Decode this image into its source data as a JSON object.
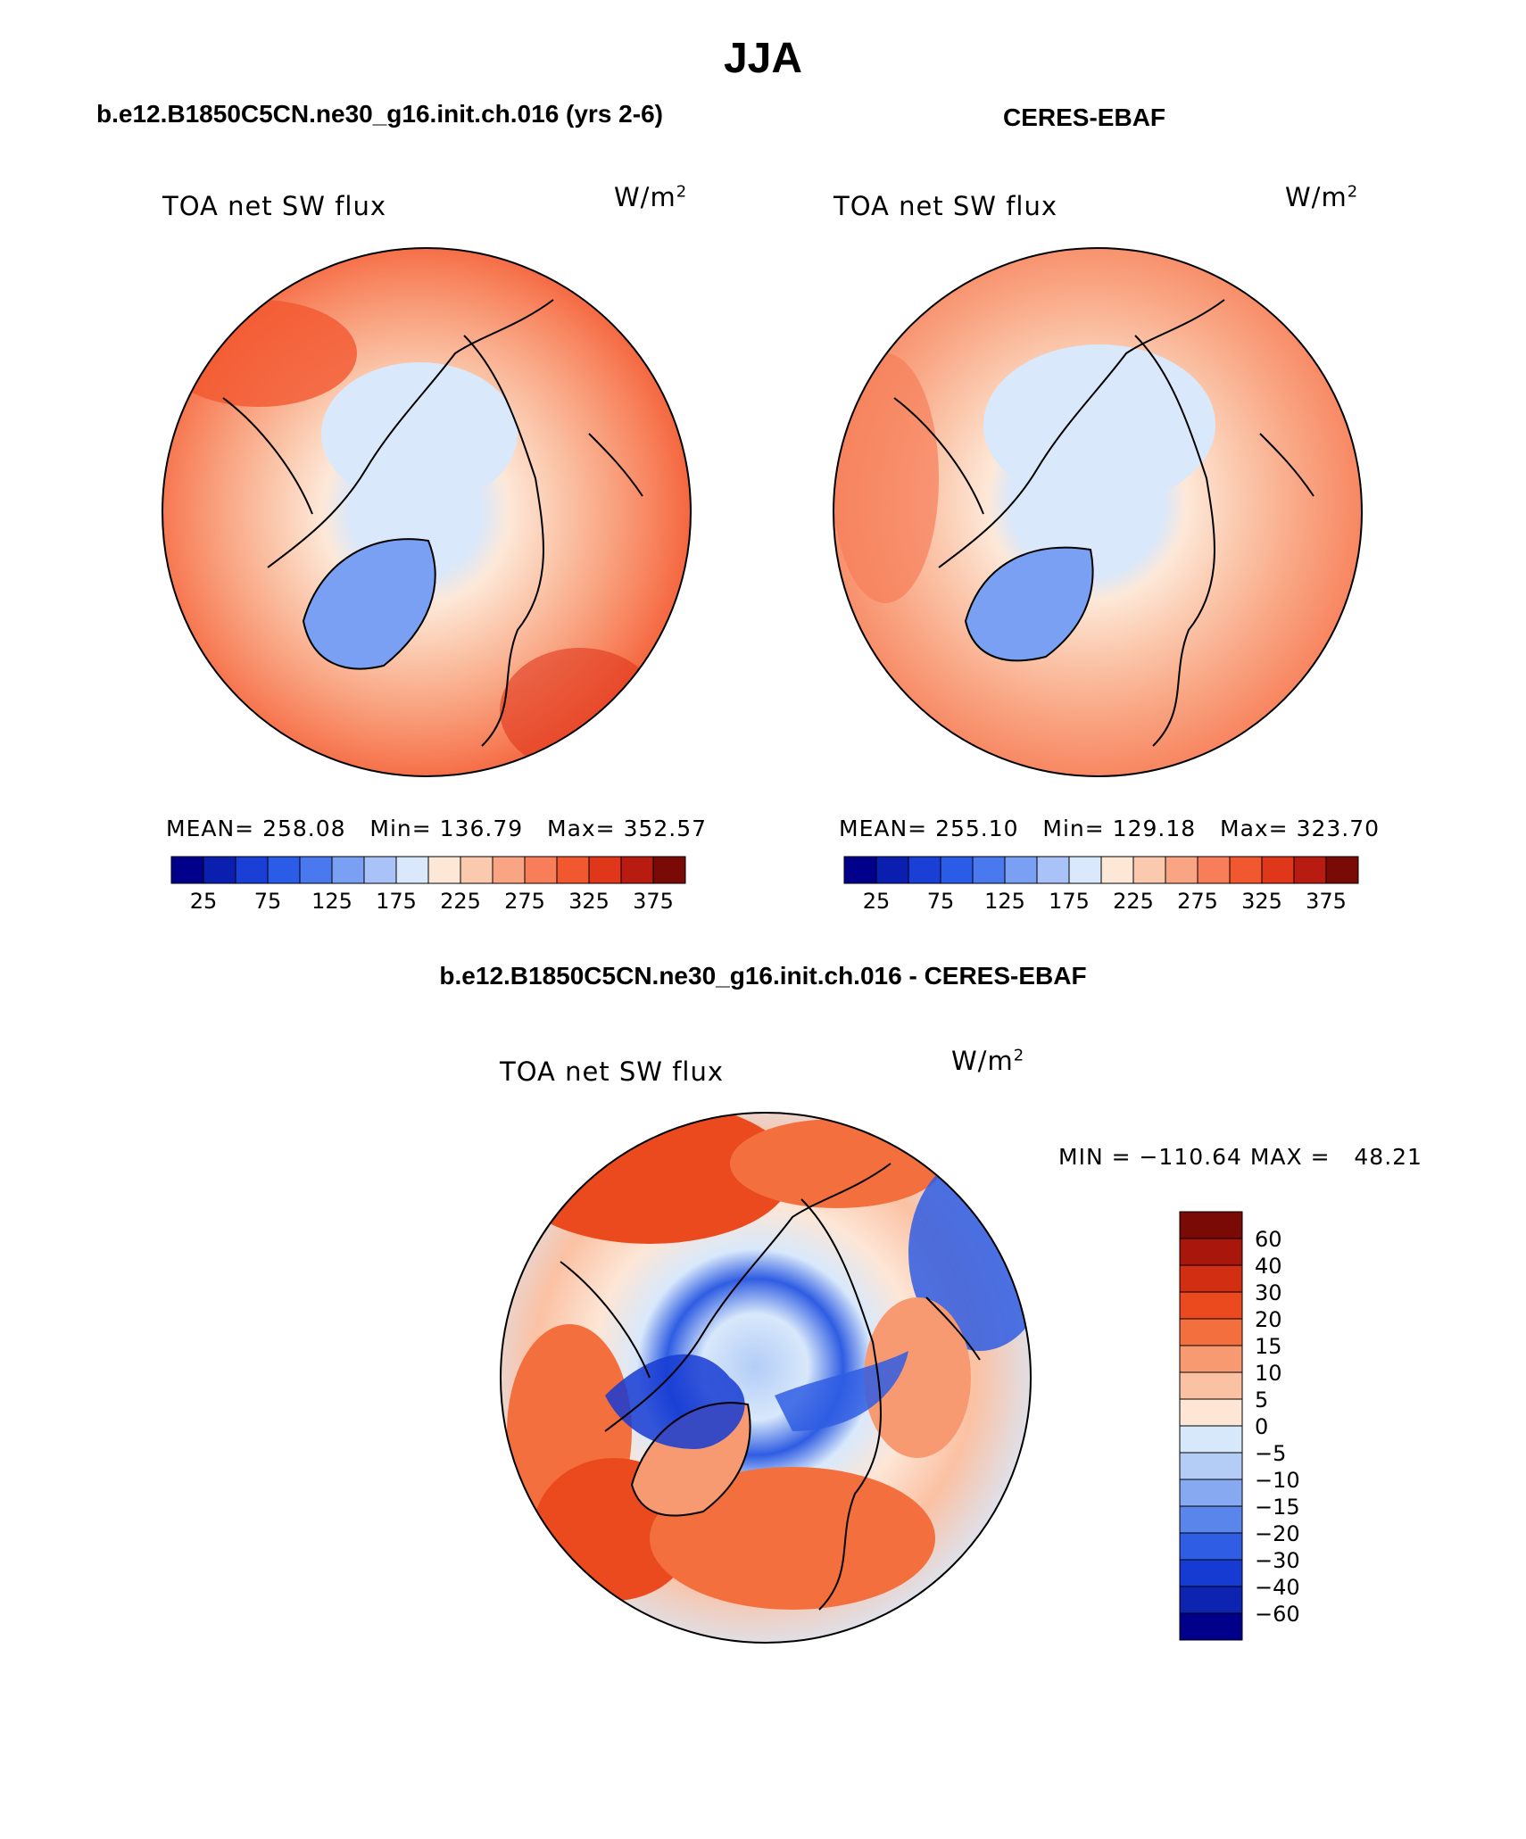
{
  "season": "JJA",
  "panels": {
    "model": {
      "case_title": "b.e12.B1850C5CN.ne30_g16.init.ch.016 (yrs 2-6)",
      "variable": "TOA net SW flux",
      "units_base": "W/m",
      "units_exp": "2",
      "mean_label": "MEAN=",
      "mean": "258.08",
      "min_label": "Min=",
      "min": "136.79",
      "max_label": "Max=",
      "max": "352.57"
    },
    "obs": {
      "case_title": "CERES-EBAF",
      "variable": "TOA net SW flux",
      "units_base": "W/m",
      "units_exp": "2",
      "mean_label": "MEAN=",
      "mean": "255.10",
      "min_label": "Min=",
      "min": "129.18",
      "max_label": "Max=",
      "max": "323.70"
    },
    "diff": {
      "case_title": "b.e12.B1850C5CN.ne30_g16.init.ch.016 - CERES-EBAF",
      "variable": "TOA net SW flux",
      "units_base": "W/m",
      "units_exp": "2",
      "minmax_text": "MIN = −110.64 MAX =   48.21"
    }
  },
  "colorbars": {
    "abs": {
      "colors": [
        "#00008b",
        "#0a1fb0",
        "#1a3fd6",
        "#2a5ce8",
        "#4a78ee",
        "#7aa0f4",
        "#a9c3f8",
        "#d9e8fb",
        "#fde8d8",
        "#fbc9ae",
        "#f9a583",
        "#f77e58",
        "#f25830",
        "#e0361a",
        "#b81c10",
        "#7a0a06"
      ],
      "labels": [
        "25",
        "75",
        "125",
        "175",
        "225",
        "275",
        "325",
        "375"
      ]
    },
    "diff": {
      "colors": [
        "#7a0a06",
        "#a8160c",
        "#d12e12",
        "#ea4a1e",
        "#f36f3e",
        "#f79a72",
        "#fbc1a3",
        "#fde6d6",
        "#d8e8fb",
        "#b3cdf7",
        "#86a9f1",
        "#5a85ea",
        "#2f5de3",
        "#163bd2",
        "#0c24b0",
        "#00008b"
      ],
      "labels": [
        "60",
        "40",
        "30",
        "20",
        "15",
        "10",
        "5",
        "0",
        "−5",
        "−10",
        "−15",
        "−20",
        "−30",
        "−40",
        "−60"
      ]
    }
  },
  "chart_data": {
    "type": "heatmap",
    "description_values": {
      "projection": "north polar stereographic",
      "model_mean": 258.08,
      "model_min": 136.79,
      "model_max": 352.57,
      "obs_mean": 255.1,
      "obs_min": 129.18,
      "obs_max": 323.7,
      "diff_min": -110.64,
      "diff_max": 48.21
    },
    "abs_levels": [
      25,
      50,
      75,
      100,
      125,
      150,
      175,
      200,
      225,
      250,
      275,
      300,
      325,
      350,
      375
    ],
    "diff_levels": [
      -60,
      -40,
      -30,
      -20,
      -15,
      -10,
      -5,
      0,
      5,
      10,
      15,
      20,
      30,
      40,
      60
    ]
  }
}
